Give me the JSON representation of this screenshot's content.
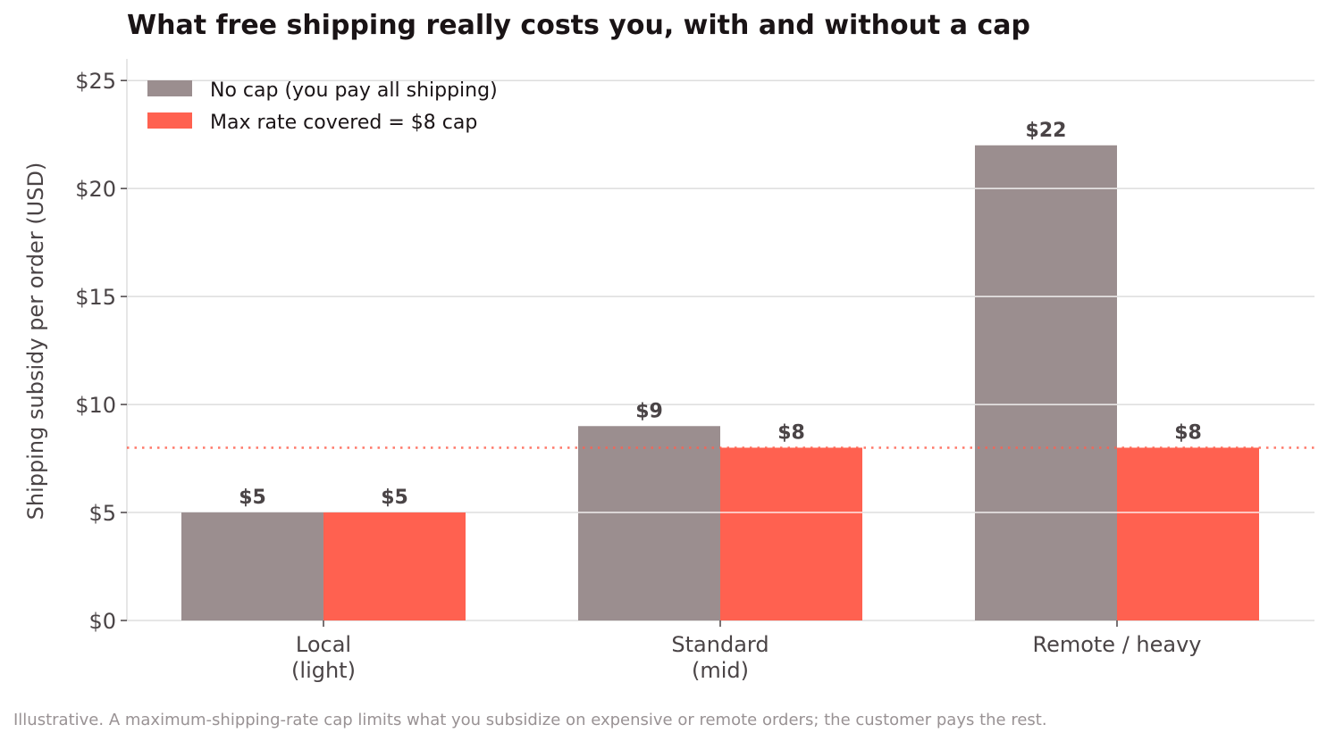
{
  "colors": {
    "no_cap": "#9b8e8f",
    "cap": "#ff6150",
    "cap_line": "#ff6150",
    "grid": "#dddddd",
    "text": "#4a4446"
  },
  "footnote": "Illustrative. A maximum-shipping-rate cap limits what you subsidize on expensive or remote orders; the customer pays the rest.",
  "chart_data": {
    "type": "bar",
    "title": "What free shipping really costs you, with and without a cap",
    "xlabel": "",
    "ylabel": "Shipping subsidy per order (USD)",
    "categories": [
      [
        "Local",
        "(light)"
      ],
      [
        "Standard",
        "(mid)"
      ],
      [
        "Remote / heavy"
      ]
    ],
    "series": [
      {
        "name": "No cap (you pay all shipping)",
        "values": [
          5,
          9,
          22
        ],
        "labels": [
          "$5",
          "$9",
          "$22"
        ]
      },
      {
        "name": "Max rate covered = $8 cap",
        "values": [
          5,
          8,
          8
        ],
        "labels": [
          "$5",
          "$8",
          "$8"
        ]
      }
    ],
    "ylim": [
      0,
      26
    ],
    "yticks": [
      0,
      5,
      10,
      15,
      20,
      25
    ],
    "ytick_labels": [
      "$0",
      "$5",
      "$10",
      "$15",
      "$20",
      "$25"
    ],
    "reference_line": 8,
    "grid": true,
    "legend_position": "top-left"
  }
}
